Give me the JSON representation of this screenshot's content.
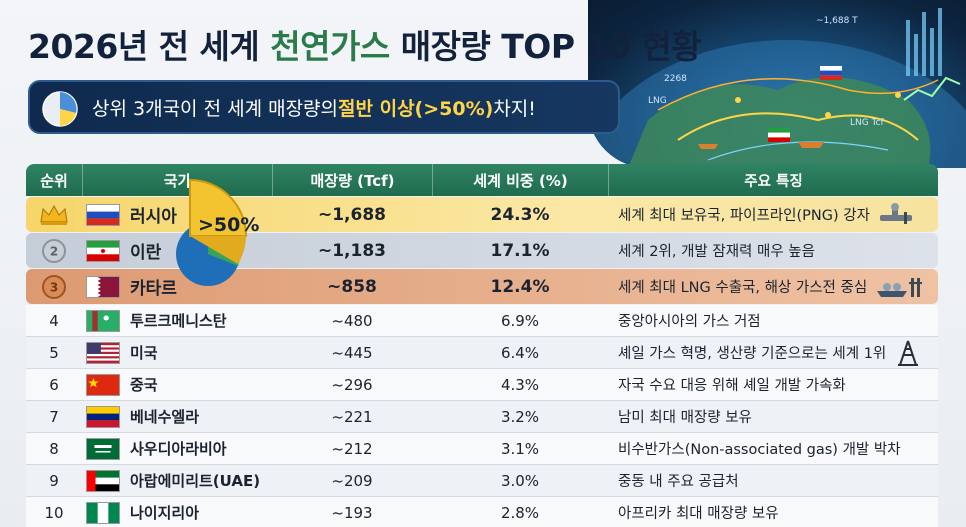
{
  "title": {
    "prefix": "2026년 전 세계 ",
    "highlight": "천연가스",
    "suffix": " 매장량 TOP 10 현황"
  },
  "banner": {
    "prefix": "상위 3개국이 전 세계 매장량의 ",
    "highlight": "절반 이상(>50%)",
    "suffix": " 차지!"
  },
  "badge": ">50%",
  "icons": {
    "rank1": "crown-icon",
    "rank2": "silver-medal-icon",
    "rank3": "bronze-medal-icon",
    "pipeline": "pipeline-icon",
    "lng": "lng-ship-icon",
    "rig": "oil-rig-icon",
    "banner": "pie-chart-icon"
  },
  "colors": {
    "header": "#1f6b4e",
    "gold": "#f6d56a",
    "silver": "#c5cdd8",
    "bronze": "#dd9a72",
    "banner": "#0f2a4e",
    "highlight": "#ffd447"
  },
  "globe": {
    "value_label": "~1,688 T",
    "lng_label": "LNG",
    "lng_tcf_label": "LNG Tcf",
    "num_label": "2268"
  },
  "chart_data": {
    "type": "table",
    "columns": [
      "순위",
      "국가",
      "매장량 (Tcf)",
      "세계 비중 (%)",
      "주요 특징"
    ],
    "rows": [
      {
        "rank": "1",
        "country": "러시아",
        "reserve": "~1,688",
        "share": "24.3%",
        "feature": "세계 최대 보유국, 파이프라인(PNG) 강자"
      },
      {
        "rank": "2",
        "country": "이란",
        "reserve": "~1,183",
        "share": "17.1%",
        "feature": "세계 2위, 개발 잠재력 매우 높음"
      },
      {
        "rank": "3",
        "country": "카타르",
        "reserve": "~858",
        "share": "12.4%",
        "feature": "세계 최대 LNG 수출국, 해상 가스전 중심"
      },
      {
        "rank": "4",
        "country": "투르크메니스탄",
        "reserve": "~480",
        "share": "6.9%",
        "feature": "중앙아시아의 가스 거점"
      },
      {
        "rank": "5",
        "country": "미국",
        "reserve": "~445",
        "share": "6.4%",
        "feature": "셰일 가스 혁명, 생산량 기준으로는 세계 1위"
      },
      {
        "rank": "6",
        "country": "중국",
        "reserve": "~296",
        "share": "4.3%",
        "feature": "자국 수요 대응 위해 셰일 개발 가속화"
      },
      {
        "rank": "7",
        "country": "베네수엘라",
        "reserve": "~221",
        "share": "3.2%",
        "feature": "남미 최대 매장량 보유"
      },
      {
        "rank": "8",
        "country": "사우디아라비아",
        "reserve": "~212",
        "share": "3.1%",
        "feature": "비수반가스(Non-associated gas) 개발 박차"
      },
      {
        "rank": "9",
        "country": "아랍에미리트(UAE)",
        "reserve": "~209",
        "share": "3.0%",
        "feature": "중동 내 주요 공급처"
      },
      {
        "rank": "10",
        "country": "나이지리아",
        "reserve": "~193",
        "share": "2.8%",
        "feature": "아프리카 최대 매장량 보유"
      }
    ]
  }
}
